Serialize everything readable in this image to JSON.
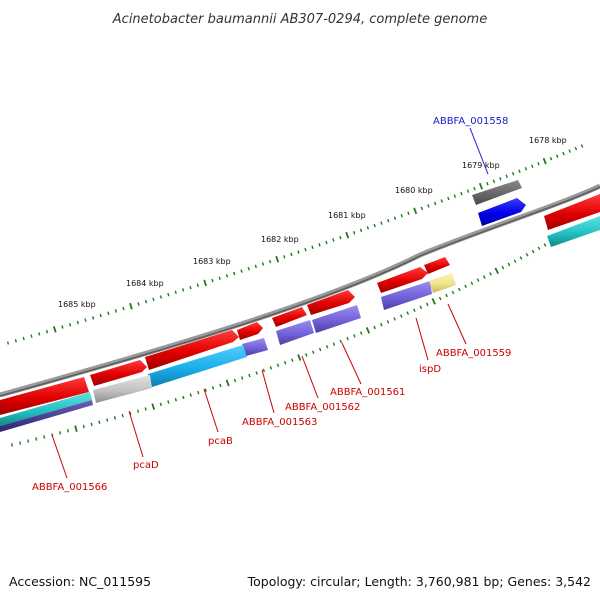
{
  "title": "Acinetobacter baumannii AB307-0294, complete genome",
  "footer": {
    "accession": "Accession: NC_011595",
    "summary": "Topology: circular; Length: 3,760,981 bp; Genes: 3,542"
  },
  "colors": {
    "backbone": "#7a7a7a",
    "tick": "#1f7a1f",
    "label_red": "#cc0000",
    "label_blue": "#1a1acc"
  },
  "scale_labels": [
    {
      "text": "1678 kbp",
      "value_kbp": 1678
    },
    {
      "text": "1679 kbp",
      "value_kbp": 1679
    },
    {
      "text": "1680 kbp",
      "value_kbp": 1680
    },
    {
      "text": "1681 kbp",
      "value_kbp": 1681
    },
    {
      "text": "1682 kbp",
      "value_kbp": 1682
    },
    {
      "text": "1683 kbp",
      "value_kbp": 1683
    },
    {
      "text": "1684 kbp",
      "value_kbp": 1684
    },
    {
      "text": "1685 kbp",
      "value_kbp": 1685
    }
  ],
  "genes": [
    {
      "label": "ABBFA_001558",
      "color": "#1a1acc"
    },
    {
      "label": "ABBFA_001559",
      "color": "#cc0000"
    },
    {
      "label": "ispD",
      "color": "#cc0000"
    },
    {
      "label": "ABBFA_001561",
      "color": "#cc0000"
    },
    {
      "label": "ABBFA_001562",
      "color": "#cc0000"
    },
    {
      "label": "ABBFA_001563",
      "color": "#cc0000"
    },
    {
      "label": "pcaB",
      "color": "#cc0000"
    },
    {
      "label": "pcaD",
      "color": "#cc0000"
    },
    {
      "label": "ABBFA_001566",
      "color": "#cc0000"
    }
  ]
}
